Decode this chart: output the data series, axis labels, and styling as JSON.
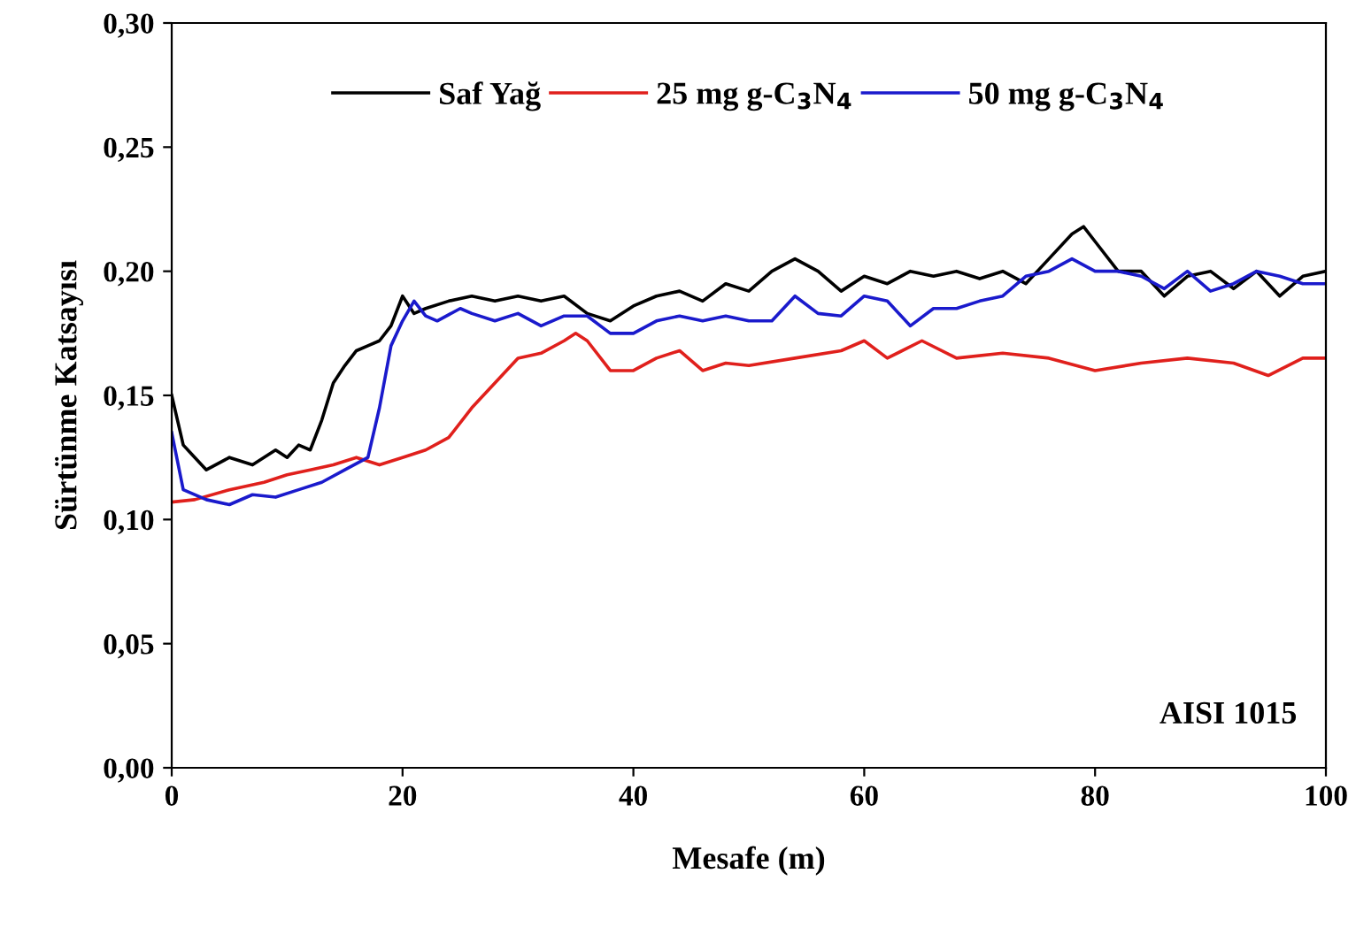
{
  "chart_data": {
    "type": "line",
    "xlabel": "Mesafe (m)",
    "ylabel": "Sürtünme Katsayısı",
    "annotations": [
      "AISI 1015"
    ],
    "xlim": [
      0,
      100
    ],
    "xticks": [
      0,
      20,
      40,
      60,
      80,
      100
    ],
    "ylim": [
      0,
      0.3
    ],
    "yticks": [
      {
        "value": 0,
        "label": "0,00"
      },
      {
        "value": 0.05,
        "label": "0,05"
      },
      {
        "value": 0.1,
        "label": "0,10"
      },
      {
        "value": 0.15,
        "label": "0,15"
      },
      {
        "value": 0.2,
        "label": "0,20"
      },
      {
        "value": 0.25,
        "label": "0,25"
      },
      {
        "value": 0.3,
        "label": "0,30"
      }
    ],
    "grid": false,
    "legend": "top",
    "line_style": "solid",
    "series": [
      {
        "name": "Saf Yağ",
        "color": "#000000",
        "x": [
          0,
          1,
          2,
          3,
          5,
          7,
          9,
          10,
          11,
          12,
          13,
          14,
          15,
          16,
          17,
          18,
          19,
          20,
          21,
          22,
          24,
          26,
          28,
          30,
          32,
          34,
          36,
          38,
          40,
          42,
          44,
          46,
          48,
          50,
          52,
          54,
          56,
          58,
          60,
          62,
          64,
          66,
          68,
          70,
          72,
          74,
          76,
          78,
          79,
          80,
          82,
          84,
          86,
          88,
          90,
          92,
          94,
          96,
          98,
          100
        ],
        "values": [
          0.15,
          0.13,
          0.125,
          0.12,
          0.125,
          0.122,
          0.128,
          0.125,
          0.13,
          0.128,
          0.14,
          0.155,
          0.162,
          0.168,
          0.17,
          0.172,
          0.178,
          0.19,
          0.183,
          0.185,
          0.188,
          0.19,
          0.188,
          0.19,
          0.188,
          0.19,
          0.183,
          0.18,
          0.186,
          0.19,
          0.192,
          0.188,
          0.195,
          0.192,
          0.2,
          0.205,
          0.2,
          0.192,
          0.198,
          0.195,
          0.2,
          0.198,
          0.2,
          0.197,
          0.2,
          0.195,
          0.205,
          0.215,
          0.218,
          0.212,
          0.2,
          0.2,
          0.19,
          0.198,
          0.2,
          0.193,
          0.2,
          0.19,
          0.198,
          0.2
        ]
      },
      {
        "name": "25 mg g-C$_{3}$N$_{4}$",
        "color": "#e0201c",
        "x": [
          0,
          2,
          5,
          8,
          10,
          12,
          14,
          16,
          18,
          20,
          22,
          24,
          26,
          28,
          30,
          32,
          34,
          35,
          36,
          38,
          40,
          42,
          44,
          46,
          48,
          50,
          54,
          58,
          60,
          62,
          65,
          68,
          72,
          76,
          80,
          84,
          88,
          92,
          95,
          98,
          100
        ],
        "values": [
          0.107,
          0.108,
          0.112,
          0.115,
          0.118,
          0.12,
          0.122,
          0.125,
          0.122,
          0.125,
          0.128,
          0.133,
          0.145,
          0.155,
          0.165,
          0.167,
          0.172,
          0.175,
          0.172,
          0.16,
          0.16,
          0.165,
          0.168,
          0.16,
          0.163,
          0.162,
          0.165,
          0.168,
          0.172,
          0.165,
          0.172,
          0.165,
          0.167,
          0.165,
          0.16,
          0.163,
          0.165,
          0.163,
          0.158,
          0.165,
          0.165
        ]
      },
      {
        "name": "50 mg g-C$_{3}$N$_{4}$",
        "color": "#1a1acc",
        "x": [
          0,
          1,
          3,
          5,
          7,
          9,
          11,
          13,
          15,
          17,
          18,
          19,
          20,
          21,
          22,
          23,
          25,
          26,
          28,
          30,
          32,
          34,
          36,
          38,
          40,
          42,
          44,
          46,
          48,
          50,
          52,
          54,
          56,
          58,
          60,
          62,
          64,
          66,
          68,
          70,
          72,
          74,
          76,
          78,
          80,
          82,
          84,
          86,
          88,
          90,
          92,
          94,
          96,
          98,
          100
        ],
        "values": [
          0.135,
          0.112,
          0.108,
          0.106,
          0.11,
          0.109,
          0.112,
          0.115,
          0.12,
          0.125,
          0.145,
          0.17,
          0.18,
          0.188,
          0.182,
          0.18,
          0.185,
          0.183,
          0.18,
          0.183,
          0.178,
          0.182,
          0.182,
          0.175,
          0.175,
          0.18,
          0.182,
          0.18,
          0.182,
          0.18,
          0.18,
          0.19,
          0.183,
          0.182,
          0.19,
          0.188,
          0.178,
          0.185,
          0.185,
          0.188,
          0.19,
          0.198,
          0.2,
          0.205,
          0.2,
          0.2,
          0.198,
          0.193,
          0.2,
          0.192,
          0.195,
          0.2,
          0.198,
          0.195,
          0.195
        ]
      }
    ]
  }
}
